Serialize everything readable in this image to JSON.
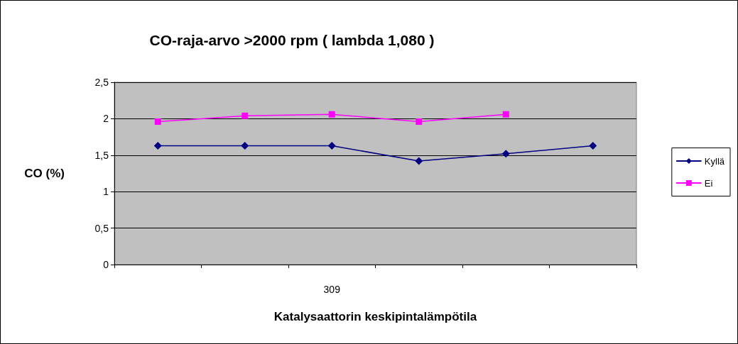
{
  "chart_data": {
    "type": "line",
    "title": "CO-raja-arvo >2000 rpm ( lambda 1,080 )",
    "xlabel": "Katalysaattorin keskipintalämpötila",
    "ylabel": "CO (%)",
    "categories": [
      null,
      null,
      "309",
      null,
      null,
      null
    ],
    "series": [
      {
        "name": "Kyllä",
        "color": "#000080",
        "marker": "diamond",
        "values": [
          1.63,
          1.63,
          1.63,
          1.42,
          1.52,
          1.63
        ]
      },
      {
        "name": "Ei",
        "color": "#ff00ff",
        "marker": "square",
        "values": [
          1.96,
          2.04,
          2.06,
          1.96,
          2.06,
          null
        ]
      }
    ],
    "ylim": [
      0,
      2.5
    ],
    "yticks": [
      {
        "value": 0,
        "label": "0"
      },
      {
        "value": 0.5,
        "label": "0,5"
      },
      {
        "value": 1,
        "label": "1"
      },
      {
        "value": 1.5,
        "label": "1,5"
      },
      {
        "value": 2,
        "label": "2"
      },
      {
        "value": 2.5,
        "label": "2,5"
      }
    ],
    "grid": "y",
    "legend": "right",
    "line_style": "solid"
  }
}
